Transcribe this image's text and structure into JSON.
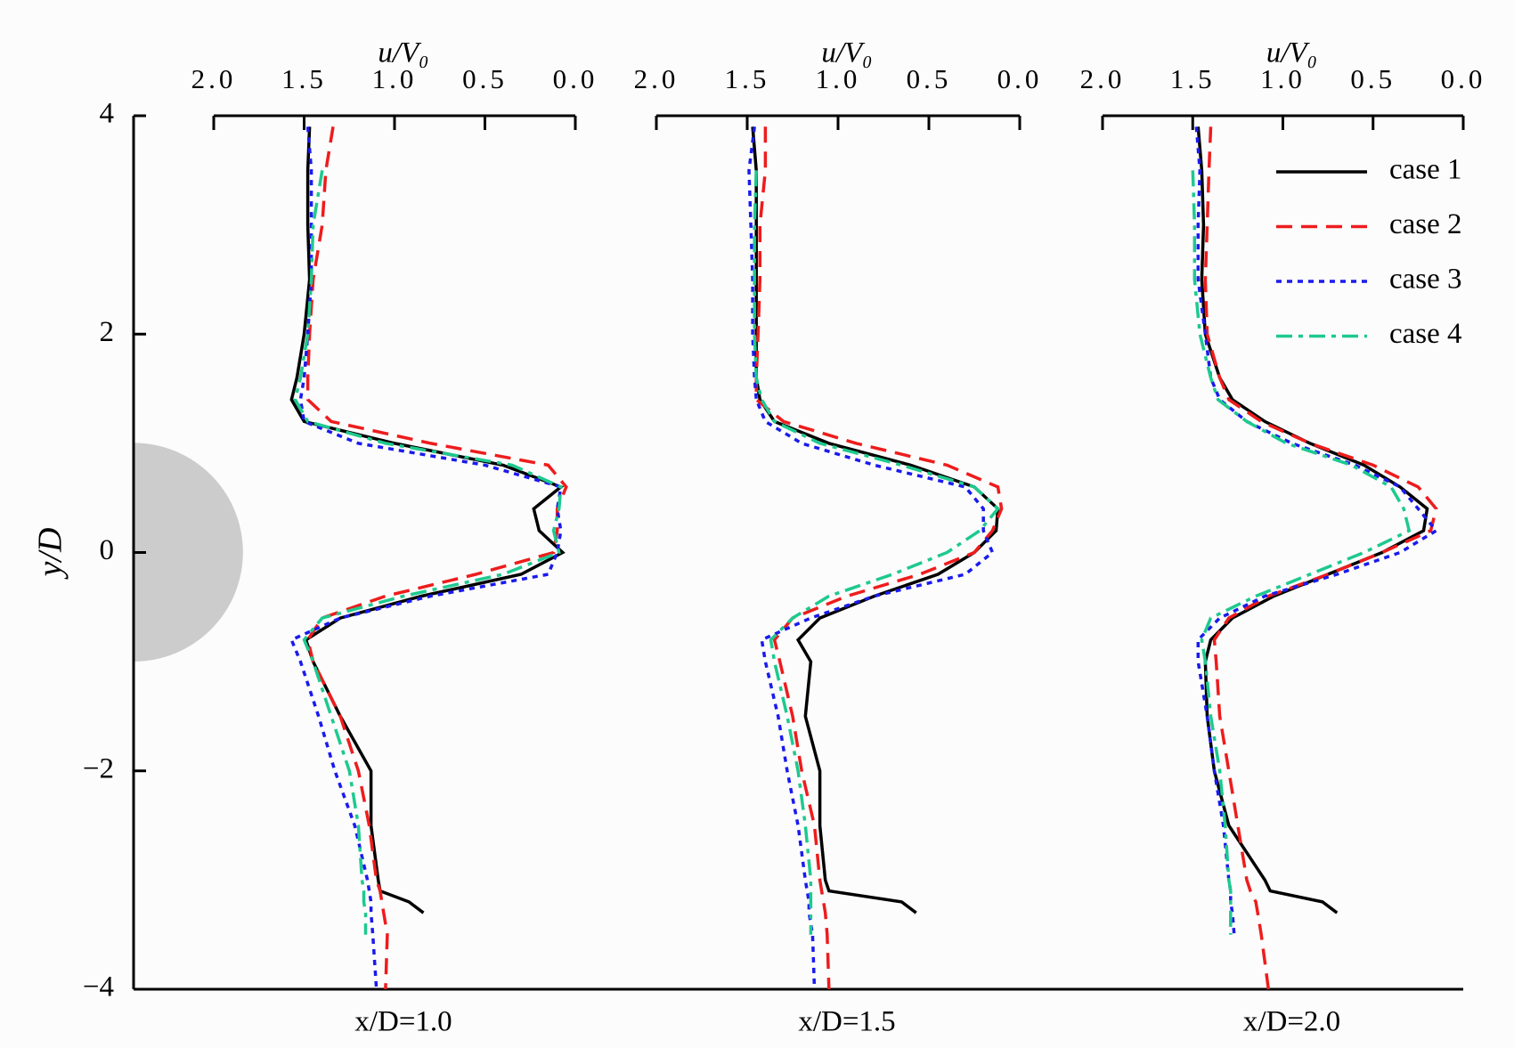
{
  "chart_data": [
    {
      "type": "line",
      "xlabel": "u/V₀",
      "title": "x/D=1.0",
      "ylabel": "y/D",
      "ylim": [
        -4,
        4
      ],
      "yticks": [
        {
          "value": -4,
          "label": "−4"
        },
        {
          "value": -2,
          "label": "−2"
        },
        0,
        2,
        4
      ],
      "xlim": [
        2,
        0
      ],
      "xticks": [
        {
          "value": 2,
          "label": "2.0"
        },
        1.5,
        {
          "value": 1,
          "label": "1.0"
        },
        0.5,
        {
          "value": 0,
          "label": "0.0"
        }
      ],
      "y": [
        3.9,
        3.5,
        3.0,
        2.5,
        2.0,
        1.6,
        1.4,
        1.2,
        1.0,
        0.8,
        0.6,
        0.4,
        0.2,
        0,
        -0.2,
        -0.4,
        -0.6,
        -0.8,
        -1.0,
        -1.5,
        -2.0,
        -2.5,
        -3.0,
        -3.1,
        -3.2,
        -3.3,
        -3.5,
        -4.0
      ],
      "series": [
        {
          "color": "#000000",
          "style": "solid",
          "values": [
            1.47,
            1.48,
            1.48,
            1.47,
            1.5,
            1.54,
            1.57,
            1.5,
            1.0,
            0.4,
            0.08,
            0.23,
            0.2,
            0.07,
            0.3,
            0.85,
            1.3,
            1.49,
            1.45,
            1.3,
            1.13,
            1.13,
            1.09,
            1.08,
            0.92,
            0.84,
            null,
            null
          ]
        },
        {
          "color": "#ee1c1c",
          "style": "dashed",
          "values": [
            1.34,
            1.38,
            1.4,
            1.45,
            1.47,
            1.48,
            1.48,
            1.35,
            0.8,
            0.15,
            0.05,
            0.1,
            0.1,
            0.12,
            0.55,
            1.05,
            1.4,
            1.48,
            1.45,
            1.3,
            1.2,
            1.14,
            1.1,
            1.08,
            1.07,
            1.06,
            1.04,
            1.05
          ]
        },
        {
          "color": "#1a1aee",
          "style": "dotted",
          "values": [
            1.48,
            1.46,
            1.46,
            1.46,
            1.48,
            1.5,
            1.52,
            1.5,
            1.2,
            0.5,
            0.08,
            0.1,
            0.08,
            0.1,
            0.15,
            0.8,
            1.3,
            1.57,
            1.52,
            1.42,
            1.33,
            1.22,
            1.15,
            1.14,
            1.13,
            1.13,
            1.12,
            1.1
          ]
        },
        {
          "color": "#1ec98f",
          "style": "dashdot",
          "values": [
            null,
            1.4,
            1.45,
            1.46,
            1.48,
            1.52,
            1.55,
            1.48,
            1.05,
            0.35,
            0.08,
            0.09,
            0.12,
            0.09,
            0.4,
            0.95,
            1.4,
            1.5,
            1.45,
            1.35,
            1.25,
            1.2,
            1.18,
            1.17,
            1.17,
            1.16,
            1.16,
            null
          ]
        }
      ]
    },
    {
      "type": "line",
      "xlabel": "u/V₀",
      "title": "x/D=1.5",
      "xlim": [
        2,
        0
      ],
      "xticks": [
        {
          "value": 2,
          "label": "2.0"
        },
        1.5,
        {
          "value": 1,
          "label": "1.0"
        },
        0.5,
        {
          "value": 0,
          "label": "0.0"
        }
      ],
      "y": [
        3.9,
        3.5,
        3.0,
        2.5,
        2.0,
        1.6,
        1.4,
        1.2,
        1.0,
        0.8,
        0.6,
        0.4,
        0.2,
        0,
        -0.2,
        -0.4,
        -0.6,
        -0.8,
        -1.0,
        -1.5,
        -2.0,
        -2.5,
        -3.0,
        -3.1,
        -3.2,
        -3.3,
        -3.5,
        -4.0
      ],
      "series": [
        {
          "color": "#000000",
          "style": "solid",
          "values": [
            1.47,
            1.45,
            1.45,
            1.45,
            1.45,
            1.45,
            1.43,
            1.35,
            1.05,
            0.6,
            0.25,
            0.12,
            0.13,
            0.25,
            0.45,
            0.8,
            1.1,
            1.22,
            1.15,
            1.18,
            1.1,
            1.1,
            1.07,
            1.05,
            0.65,
            0.57,
            null,
            null
          ]
        },
        {
          "color": "#ee1c1c",
          "style": "dashed",
          "values": [
            1.4,
            1.4,
            1.43,
            1.43,
            1.44,
            1.45,
            1.45,
            1.3,
            0.9,
            0.4,
            0.12,
            0.1,
            0.15,
            0.25,
            0.55,
            0.95,
            1.25,
            1.35,
            1.32,
            1.25,
            1.2,
            1.13,
            1.1,
            1.09,
            1.08,
            1.07,
            1.06,
            1.05
          ]
        },
        {
          "color": "#1a1aee",
          "style": "dotted",
          "values": [
            1.46,
            1.49,
            1.48,
            1.47,
            1.47,
            1.46,
            1.45,
            1.4,
            1.2,
            0.8,
            0.3,
            0.2,
            0.2,
            0.15,
            0.3,
            0.8,
            1.15,
            1.42,
            1.4,
            1.33,
            1.28,
            1.22,
            1.18,
            1.17,
            1.16,
            1.16,
            1.14,
            1.13
          ]
        },
        {
          "color": "#1ec98f",
          "style": "dashdot",
          "values": [
            null,
            1.45,
            1.46,
            1.46,
            1.46,
            1.45,
            1.42,
            1.35,
            1.1,
            0.65,
            0.25,
            0.12,
            0.22,
            0.4,
            0.7,
            1.05,
            1.25,
            1.37,
            1.35,
            1.28,
            1.22,
            1.18,
            1.15,
            1.15,
            1.15,
            1.15,
            1.15,
            null
          ]
        }
      ]
    },
    {
      "type": "line",
      "xlabel": "u/V₀",
      "title": "x/D=2.0",
      "legend": "upper right",
      "xlim": [
        2,
        0
      ],
      "xticks": [
        {
          "value": 2,
          "label": "2.0"
        },
        1.5,
        {
          "value": 1,
          "label": "1.0"
        },
        0.5,
        {
          "value": 0,
          "label": "0.0"
        }
      ],
      "y": [
        3.9,
        3.5,
        3.0,
        2.5,
        2.0,
        1.6,
        1.4,
        1.2,
        1.0,
        0.8,
        0.6,
        0.4,
        0.2,
        0,
        -0.2,
        -0.4,
        -0.6,
        -0.8,
        -1.0,
        -1.5,
        -2.0,
        -2.5,
        -3.0,
        -3.1,
        -3.2,
        -3.3,
        -3.5,
        -4.0
      ],
      "series": [
        {
          "name": "case 1",
          "color": "#000000",
          "style": "solid",
          "values": [
            1.47,
            1.45,
            1.44,
            1.45,
            1.43,
            1.35,
            1.28,
            1.1,
            0.85,
            0.55,
            0.35,
            0.2,
            0.22,
            0.45,
            0.75,
            1.05,
            1.28,
            1.4,
            1.43,
            1.42,
            1.38,
            1.3,
            1.1,
            1.07,
            0.78,
            0.7,
            null,
            null
          ]
        },
        {
          "name": "case 2",
          "color": "#ee1c1c",
          "style": "dashed",
          "values": [
            1.4,
            1.41,
            1.42,
            1.43,
            1.42,
            1.35,
            1.3,
            1.12,
            0.85,
            0.5,
            0.25,
            0.15,
            0.18,
            0.45,
            0.75,
            1.08,
            1.3,
            1.38,
            1.37,
            1.35,
            1.3,
            1.25,
            1.2,
            1.18,
            1.15,
            1.14,
            1.12,
            1.08
          ]
        },
        {
          "name": "case 3",
          "color": "#1a1aee",
          "style": "dotted",
          "values": [
            1.48,
            1.46,
            1.47,
            1.47,
            1.43,
            1.4,
            1.35,
            1.2,
            0.95,
            0.6,
            0.35,
            0.25,
            0.15,
            0.35,
            0.7,
            1.1,
            1.35,
            1.47,
            1.47,
            1.42,
            1.38,
            1.33,
            1.3,
            1.29,
            1.29,
            1.28,
            1.27,
            null
          ]
        },
        {
          "name": "case 4",
          "color": "#1ec98f",
          "style": "dashdot",
          "values": [
            null,
            1.5,
            1.49,
            1.49,
            1.46,
            1.4,
            1.36,
            1.2,
            0.98,
            0.62,
            0.4,
            0.33,
            0.3,
            0.55,
            0.85,
            1.15,
            1.4,
            1.45,
            1.43,
            1.4,
            1.35,
            1.32,
            1.3,
            1.29,
            1.29,
            1.29,
            1.29,
            null
          ]
        }
      ]
    }
  ]
}
